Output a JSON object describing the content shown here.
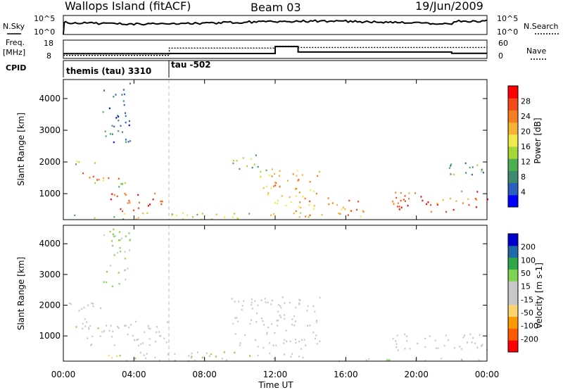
{
  "header": {
    "station": "Wallops Island (fitACF)",
    "beam": "Beam 03",
    "date": "19/Jun/2009"
  },
  "strip": {
    "nsky_label": "N.Sky",
    "nsky_ticks": [
      "10^5",
      "10^0"
    ],
    "nsearch_label": "N.Search",
    "nsearch_ticks": [
      "10^5",
      "10^0"
    ],
    "freq_label": "Freq.",
    "freq_unit": "[MHz]",
    "freq_ticks": [
      "18",
      "8"
    ],
    "nave_label": "Nave",
    "nave_ticks": [
      "60",
      "0"
    ],
    "cpid_label": "CPID",
    "cpid_modes": [
      {
        "label": "themis (tau) 3310",
        "start_hour": 0
      },
      {
        "label": "tau -502",
        "start_hour": 6
      }
    ]
  },
  "colors": {
    "power_scale": [
      "#0000ff",
      "#2a5fbf",
      "#3d8a6e",
      "#4caf50",
      "#a4d637",
      "#f1e94a",
      "#f5b233",
      "#f57f20",
      "#f34a18",
      "#ff0000"
    ],
    "velocity_scale": [
      "#ff0000",
      "#ff5a00",
      "#ff9900",
      "#ffd36b",
      "#c8c8c8",
      "#c8c8c8",
      "#7fd34f",
      "#2ea84a",
      "#1f6aa8",
      "#0000cc"
    ],
    "ground_scatter": "#c8c8c8"
  },
  "chart_data": [
    {
      "type": "heatmap",
      "name": "power-panel",
      "xlabel": "",
      "ylabel": "Slant Range [km]",
      "ylim": [
        180,
        4600
      ],
      "xlim": [
        0,
        24
      ],
      "yticks": [
        "1000",
        "2000",
        "3000",
        "4000"
      ],
      "colorbar": {
        "label": "Power [dB]",
        "ticks": [
          "28",
          "24",
          "20",
          "16",
          "12",
          "8",
          "4"
        ],
        "range": [
          0,
          30
        ]
      },
      "bands": [
        {
          "t0": 0.0,
          "t1": 1.8,
          "r0": 1850,
          "r1": 2050,
          "v": 16
        },
        {
          "t0": 0.8,
          "t1": 3.6,
          "r0": 1450,
          "r1": 1700,
          "v": 22
        },
        {
          "t0": 1.5,
          "t1": 3.5,
          "r0": 1200,
          "r1": 1450,
          "v": 14
        },
        {
          "t0": 2.5,
          "t1": 6.0,
          "r0": 650,
          "r1": 1050,
          "v": 26
        },
        {
          "t0": 3.0,
          "t1": 5.0,
          "r0": 450,
          "r1": 700,
          "v": 29
        },
        {
          "t0": 0.5,
          "t1": 14.0,
          "r0": 200,
          "r1": 420,
          "v": 16
        },
        {
          "t0": 9.5,
          "t1": 11.5,
          "r0": 1700,
          "r1": 2300,
          "v": 12
        },
        {
          "t0": 11.0,
          "t1": 14.5,
          "r0": 600,
          "r1": 1800,
          "v": 20
        },
        {
          "t0": 13.0,
          "t1": 17.0,
          "r0": 300,
          "r1": 900,
          "v": 22
        },
        {
          "t0": 18.5,
          "t1": 24.0,
          "r0": 450,
          "r1": 1100,
          "v": 25
        },
        {
          "t0": 2.2,
          "t1": 3.8,
          "r0": 2600,
          "r1": 4500,
          "v": 6
        },
        {
          "t0": 21.5,
          "t1": 24.0,
          "r0": 1600,
          "r1": 2100,
          "v": 9
        }
      ]
    },
    {
      "type": "heatmap",
      "name": "velocity-panel",
      "xlabel": "Time UT",
      "ylabel": "Slant Range [km]",
      "ylim": [
        180,
        4600
      ],
      "xlim": [
        0,
        24
      ],
      "xticks": [
        "00:00",
        "04:00",
        "08:00",
        "12:00",
        "16:00",
        "20:00",
        "00:00"
      ],
      "yticks": [
        "1000",
        "2000",
        "3000",
        "4000"
      ],
      "colorbar": {
        "label": "Velocity [m s-1]",
        "ticks": [
          "200",
          "100",
          "50",
          "15",
          "-15",
          "-50",
          "-100",
          "-200"
        ],
        "range": [
          -250,
          250
        ]
      },
      "bands": [
        {
          "t0": 0.0,
          "t1": 2.5,
          "r0": 1750,
          "r1": 2100,
          "v": 0
        },
        {
          "t0": 1.0,
          "t1": 6.0,
          "r0": 700,
          "r1": 1600,
          "v": 0
        },
        {
          "t0": 9.5,
          "t1": 14.5,
          "r0": 600,
          "r1": 2300,
          "v": 0
        },
        {
          "t0": 18.5,
          "t1": 24.0,
          "r0": 500,
          "r1": 1100,
          "v": 0
        },
        {
          "t0": 3.0,
          "t1": 14.0,
          "r0": 200,
          "r1": 500,
          "v": 35
        },
        {
          "t0": 1.0,
          "t1": 3.0,
          "r0": 250,
          "r1": 400,
          "v": -70
        },
        {
          "t0": 0.5,
          "t1": 2.0,
          "r0": 1200,
          "r1": 1400,
          "v": 40
        },
        {
          "t0": 2.2,
          "t1": 3.8,
          "r0": 2600,
          "r1": 4500,
          "v": 60
        },
        {
          "t0": 14.0,
          "t1": 24.0,
          "r0": 200,
          "r1": 300,
          "v": 30
        }
      ]
    }
  ]
}
